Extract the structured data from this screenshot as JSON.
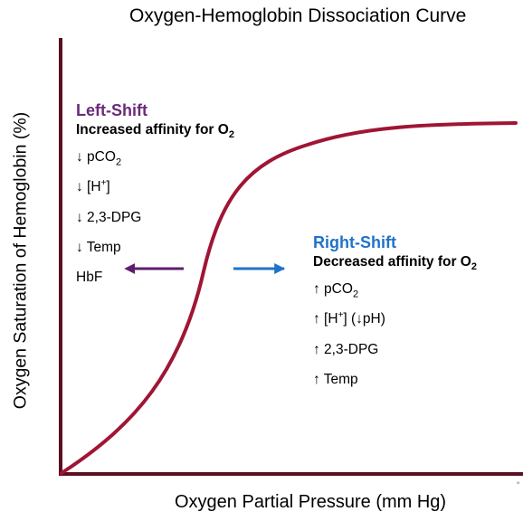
{
  "title": "Oxygen-Hemoglobin Dissociation Curve",
  "x_axis_label": "Oxygen Partial Pressure (mm Hg)",
  "y_axis_label": "Oxygen Saturation of Hemoglobin (%)",
  "left_shift": {
    "heading": "Left-Shift",
    "subheading_pre": "Increased affinity for O",
    "subheading_sub": "2",
    "items": [
      {
        "pre": "↓ pCO",
        "sub": "2",
        "sup": "",
        "post": ""
      },
      {
        "pre": "↓ [H",
        "sub": "",
        "sup": "+",
        "post": "]"
      },
      {
        "pre": "↓ 2,3-DPG",
        "sub": "",
        "sup": "",
        "post": ""
      },
      {
        "pre": "↓ Temp",
        "sub": "",
        "sup": "",
        "post": ""
      },
      {
        "pre": "HbF",
        "sub": "",
        "sup": "",
        "post": ""
      }
    ]
  },
  "right_shift": {
    "heading": "Right-Shift",
    "subheading_pre": "Decreased affinity for O",
    "subheading_sub": "2",
    "items": [
      {
        "pre": "↑ pCO",
        "sub": "2",
        "sup": "",
        "post": ""
      },
      {
        "pre": "↑ [H",
        "sub": "",
        "sup": "+",
        "post": "] (↓pH)"
      },
      {
        "pre": "↑ 2,3-DPG",
        "sub": "",
        "sup": "",
        "post": ""
      },
      {
        "pre": "↑ Temp",
        "sub": "",
        "sup": "",
        "post": ""
      }
    ]
  },
  "watermark": "M",
  "colors": {
    "axis": "#5a1020",
    "curve": "#a01535",
    "left_shift": "#6b2a7a",
    "right_shift": "#1f73c8",
    "left_arrow": "#5c1f70",
    "right_arrow": "#1f73c8"
  }
}
